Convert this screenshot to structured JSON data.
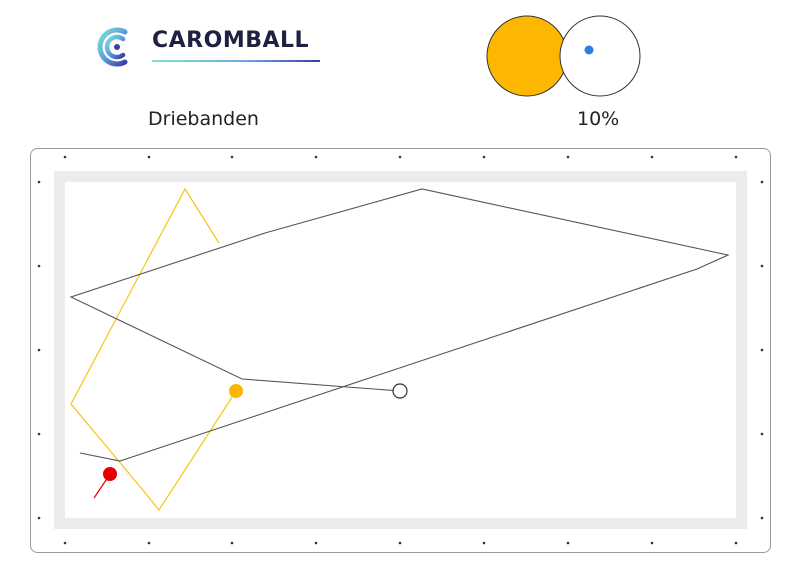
{
  "brand": {
    "name": "CAROMBALL",
    "logo_icon": "caromball-logo-icon",
    "underline_colors": [
      "#7fe3d2",
      "#6aa8e6",
      "#3a3fa8"
    ]
  },
  "game": {
    "type_label": "Driebanden"
  },
  "spin": {
    "percent_label": "10%",
    "object_ball_color": "#FDB700",
    "cue_ball_color": "#ffffff",
    "aim_dot_color": "#2a7fe0"
  },
  "table": {
    "frame_color": "#ffffff",
    "cushion_color": "#ececec",
    "cloth_color": "#ffffff",
    "diamond_color": "#333333"
  },
  "balls": {
    "white": {
      "color": "#ffffff",
      "outline": "#333333"
    },
    "yellow": {
      "color": "#FDB700"
    },
    "red": {
      "color": "#E60000"
    }
  },
  "paths": {
    "white_color": "#555555",
    "yellow_color": "#F5C518",
    "red_color": "#E60000"
  }
}
